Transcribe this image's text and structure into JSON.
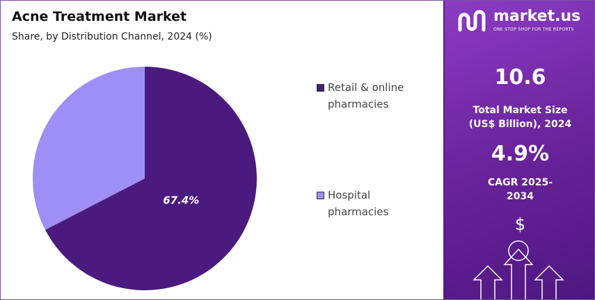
{
  "chart_data": {
    "type": "pie",
    "title": "Acne Treatment Market",
    "subtitle": "Share, by Distribution Channel, 2024 (%)",
    "categories": [
      "Retail & online pharmacies",
      "Hospital pharmacies"
    ],
    "values": [
      67.4,
      32.6
    ],
    "value_labels": [
      "67.4%",
      null
    ],
    "colors": [
      "#4b1a7e",
      "#9d8ff6"
    ],
    "start_angle": 0,
    "direction": "clockwise"
  },
  "panel": {
    "brand": "market.us",
    "tagline": "ONE STOP SHOP FOR THE REPORTS",
    "stats": [
      {
        "value": "10.6",
        "label": "Total Market Size (US$ Billion), 2024"
      },
      {
        "value": "4.9%",
        "label": "CAGR 2025-2034"
      }
    ],
    "icon": "$"
  }
}
